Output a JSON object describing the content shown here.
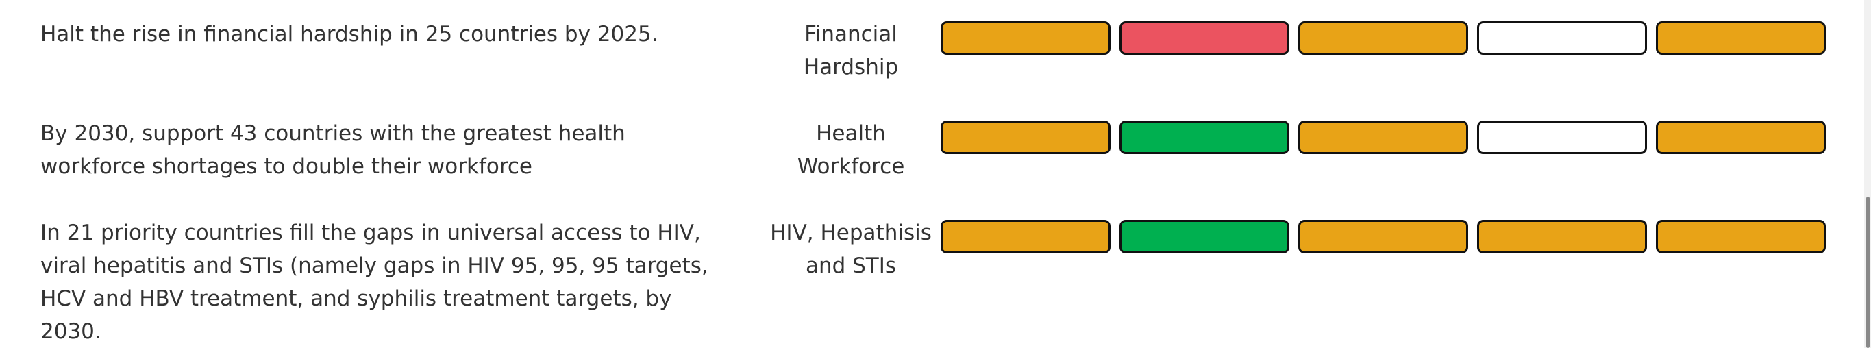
{
  "rows": [
    {
      "goal": "Halt the rise in financial hardship in 25 countries by 2025.",
      "label": "Financial Hardship",
      "statuses": [
        "#e8a317",
        "#eb5360",
        "#e8a317",
        "#ffffff",
        "#e8a317"
      ]
    },
    {
      "goal": "By 2030, support 43 countries with the greatest health workforce shortages to double their workforce",
      "label": "Health Workforce",
      "statuses": [
        "#e8a317",
        "#00b050",
        "#e8a317",
        "#ffffff",
        "#e8a317"
      ]
    },
    {
      "goal": "In 21 priority countries fill the gaps in universal access to HIV, viral hepatitis and STIs (namely gaps in HIV 95, 95, 95 targets, HCV and HBV treatment, and syphilis treatment targets, by 2030.",
      "label": "HIV, Hepathisis and STIs",
      "statuses": [
        "#e8a317",
        "#00b050",
        "#e8a317",
        "#e8a317",
        "#e8a317"
      ]
    }
  ]
}
